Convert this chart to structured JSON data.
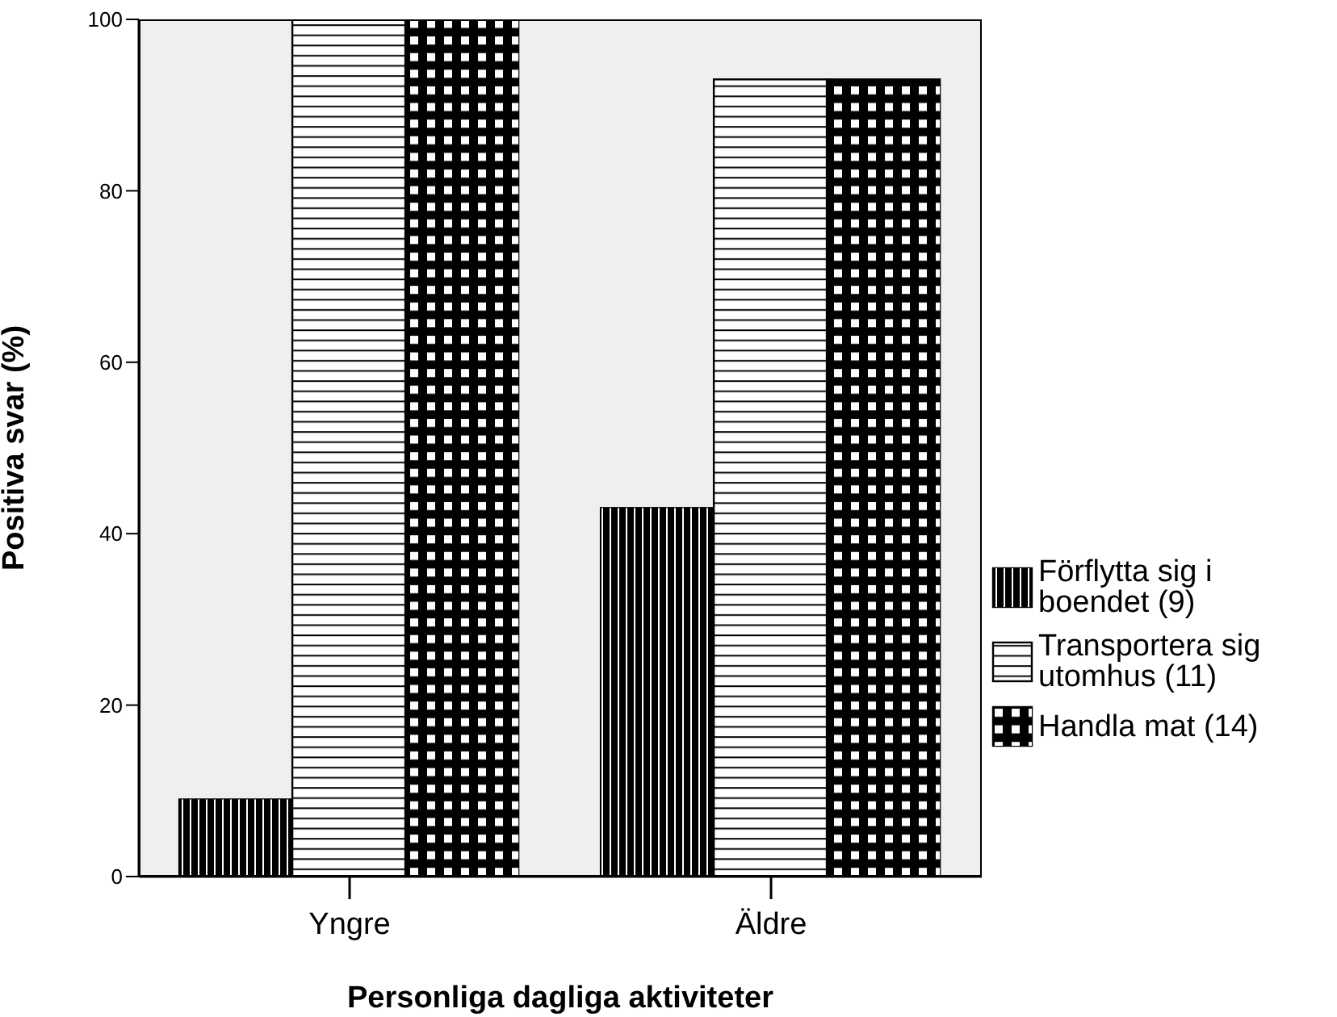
{
  "chart_data": {
    "type": "bar",
    "xlabel": "Personliga dagliga aktiviteter",
    "ylabel": "Positiva svar (%)",
    "categories": [
      "Yngre",
      "Äldre"
    ],
    "series": [
      {
        "name": "Förflytta sig i boendet (9)",
        "color": "#000000",
        "values": [
          9,
          43
        ]
      },
      {
        "name": "Transportera sig utomhus (11)",
        "color": "#ffffff",
        "values": [
          100,
          93
        ]
      },
      {
        "name": "Handla mat (14)",
        "color": "#000000",
        "values": [
          100,
          93
        ]
      }
    ],
    "ylim": [
      0,
      100
    ],
    "yticks": [
      0,
      20,
      40,
      60,
      80,
      100
    ],
    "legend": "right"
  }
}
